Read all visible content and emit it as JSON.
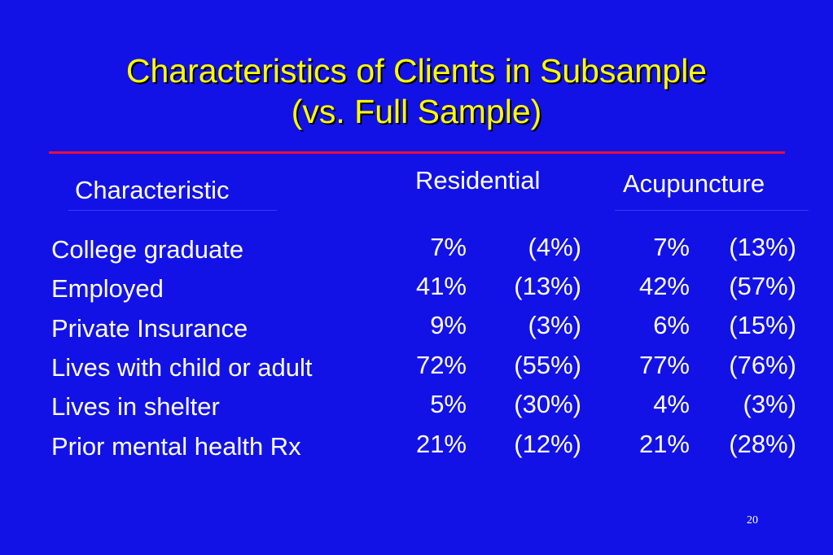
{
  "slide": {
    "title_line1": "Characteristics of Clients in Subsample",
    "title_line2": "(vs. Full Sample)",
    "page_number": "20"
  },
  "table": {
    "headers": {
      "characteristic": "Characteristic",
      "residential": "Residential",
      "acupuncture": "Acupuncture"
    },
    "rows": [
      {
        "label": "College graduate",
        "res": "7%",
        "res_full": "(4%)",
        "acu": "7%",
        "acu_full": "(13%)"
      },
      {
        "label": "Employed",
        "res": "41%",
        "res_full": "(13%)",
        "acu": "42%",
        "acu_full": "(57%)"
      },
      {
        "label": "Private Insurance",
        "res": "9%",
        "res_full": "(3%)",
        "acu": "6%",
        "acu_full": "(15%)"
      },
      {
        "label": "Lives with child or adult",
        "res": "72%",
        "res_full": "(55%)",
        "acu": "77%",
        "acu_full": "(76%)"
      },
      {
        "label": "Lives in shelter",
        "res": "5%",
        "res_full": "(30%)",
        "acu": "4%",
        "acu_full": "(3%)"
      },
      {
        "label": "Prior mental health Rx",
        "res": "21%",
        "res_full": "(12%)",
        "acu": "21%",
        "acu_full": "(28%)"
      }
    ]
  },
  "colors": {
    "background": "#1212e6",
    "title": "#ffff00",
    "rule": "#e8103a",
    "text": "#ffffff"
  }
}
